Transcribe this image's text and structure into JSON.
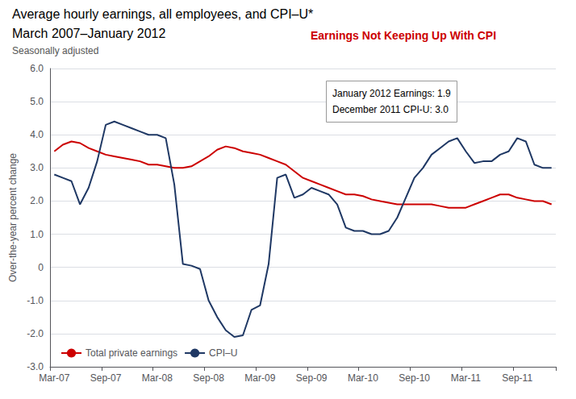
{
  "chart_data": {
    "type": "line",
    "title": [
      "Average hourly earnings, all employees, and CPI–U*",
      "March 2007–January 2012"
    ],
    "subtitle": "Seasonally adjusted",
    "annotations": [
      {
        "text": [
          "Earnings Not Keeping Up With CPI"
        ],
        "color": "#cc0000"
      },
      {
        "text": [
          "January 2012 Earnings: 1.9",
          "December 2011 CPI-U: 3.0"
        ]
      }
    ],
    "ylabel": "Over-the-year percent change",
    "categories": [
      "Mar-07",
      null,
      null,
      null,
      null,
      null,
      "Sep-07",
      null,
      null,
      null,
      null,
      null,
      "Mar-08",
      null,
      null,
      null,
      null,
      null,
      "Sep-08",
      null,
      null,
      null,
      null,
      null,
      "Mar-09",
      null,
      null,
      null,
      null,
      null,
      "Sep-09",
      null,
      null,
      null,
      null,
      null,
      "Mar-10",
      null,
      null,
      null,
      null,
      null,
      "Sep-10",
      null,
      null,
      null,
      null,
      null,
      "Mar-11",
      null,
      null,
      null,
      null,
      null,
      "Sep-11",
      null,
      null,
      null,
      null
    ],
    "series": [
      {
        "name": "Total private earnings",
        "color": "#cc0000",
        "values": [
          3.5,
          3.7,
          3.8,
          3.75,
          3.6,
          3.5,
          3.4,
          3.35,
          3.3,
          3.25,
          3.2,
          3.1,
          3.1,
          3.05,
          3.0,
          3.0,
          3.05,
          3.2,
          3.35,
          3.55,
          3.65,
          3.6,
          3.5,
          3.45,
          3.4,
          3.3,
          3.2,
          3.1,
          2.9,
          2.7,
          2.6,
          2.5,
          2.4,
          2.3,
          2.2,
          2.2,
          2.15,
          2.05,
          2.0,
          1.95,
          1.9,
          1.9,
          1.9,
          1.9,
          1.9,
          1.85,
          1.8,
          1.8,
          1.8,
          1.9,
          2.0,
          2.1,
          2.2,
          2.2,
          2.1,
          2.05,
          2.0,
          2.0,
          1.9
        ]
      },
      {
        "name": "CPI–U",
        "color": "#1f3864",
        "values": [
          2.8,
          2.7,
          2.6,
          1.9,
          2.4,
          3.2,
          4.3,
          4.4,
          4.3,
          4.2,
          4.1,
          4.0,
          4.0,
          3.9,
          2.5,
          0.1,
          0.05,
          -0.05,
          -1.0,
          -1.5,
          -1.9,
          -2.1,
          -2.05,
          -1.28,
          -1.15,
          0.1,
          2.7,
          2.8,
          2.1,
          2.2,
          2.4,
          2.3,
          2.2,
          1.9,
          1.2,
          1.1,
          1.1,
          1.0,
          1.0,
          1.1,
          1.5,
          2.1,
          2.7,
          3.0,
          3.4,
          3.6,
          3.8,
          3.9,
          3.5,
          3.15,
          3.2,
          3.2,
          3.4,
          3.5,
          3.9,
          3.8,
          3.1,
          3.0,
          3.0
        ]
      }
    ],
    "ylim": [
      -3.0,
      6.0
    ],
    "yticks": [
      {
        "value": -3.0,
        "label": "-3.0"
      },
      {
        "value": -2.0,
        "label": "-2.0"
      },
      {
        "value": -1.0,
        "label": "-1.0"
      },
      0,
      {
        "value": 1.0,
        "label": "1.0"
      },
      {
        "value": 2.0,
        "label": "2.0"
      },
      {
        "value": 3.0,
        "label": "3.0"
      },
      {
        "value": 4.0,
        "label": "4.0"
      },
      {
        "value": 5.0,
        "label": "5.0"
      },
      {
        "value": 6.0,
        "label": "6.0"
      }
    ],
    "grid": true,
    "legend": "lower left"
  }
}
